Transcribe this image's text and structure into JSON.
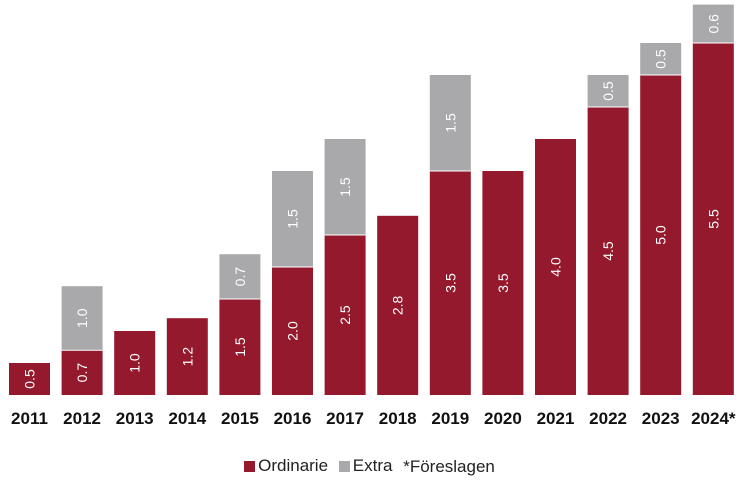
{
  "chart_data": {
    "type": "bar",
    "stacked": true,
    "categories": [
      "2011",
      "2012",
      "2013",
      "2014",
      "2015",
      "2016",
      "2017",
      "2018",
      "2019",
      "2020",
      "2021",
      "2022",
      "2023",
      "2024*"
    ],
    "series": [
      {
        "name": "Ordinarie",
        "color": "#94192d",
        "values": [
          0.5,
          0.7,
          1.0,
          1.2,
          1.5,
          2.0,
          2.5,
          2.8,
          3.5,
          3.5,
          4.0,
          4.5,
          5.0,
          5.5
        ]
      },
      {
        "name": "Extra",
        "color": "#a9a9ab",
        "values": [
          0,
          1.0,
          0,
          0,
          0.7,
          1.5,
          1.5,
          0,
          1.5,
          0,
          0,
          0.5,
          0.5,
          0.6
        ]
      }
    ],
    "data_label_orientation": "vertical",
    "ylim": [
      0,
      6.1
    ],
    "y_axis_visible": false,
    "grid": false,
    "legend": {
      "position": "bottom",
      "items": [
        "Ordinarie",
        "Extra"
      ],
      "note": "*Föreslagen"
    }
  }
}
